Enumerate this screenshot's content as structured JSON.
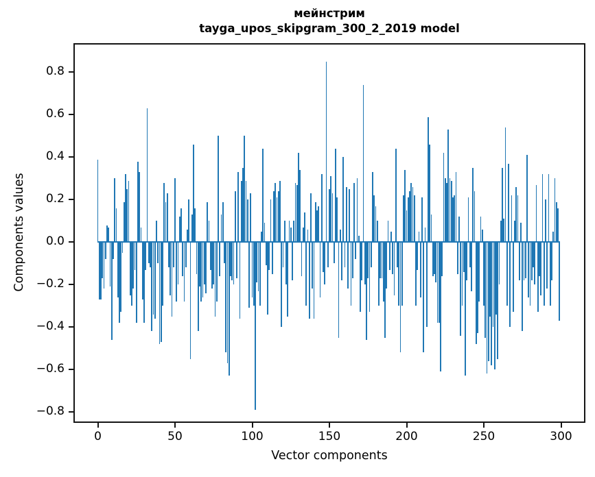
{
  "title": {
    "line1": "мейнстрим",
    "line2": "tayga_upos_skipgram_300_2_2019 model"
  },
  "chart_data": {
    "type": "bar",
    "title": "мейнстрим\ntayga_upos_skipgram_300_2_2019 model",
    "xlabel": "Vector components",
    "ylabel": "Components values",
    "x_start": 0,
    "x_step": 1,
    "x_ticks": [
      0,
      50,
      100,
      150,
      200,
      250,
      300
    ],
    "y_ticks": [
      0.8,
      0.6,
      0.4,
      0.2,
      0.0,
      -0.2,
      -0.4,
      -0.6,
      -0.8
    ],
    "xlim": [
      -15.8,
      315.8
    ],
    "ylim": [
      -0.851,
      0.937
    ],
    "grid": false,
    "legend": null,
    "bar_color": "#1f77b4",
    "spine_color": "#141414",
    "zero_line": true,
    "values": [
      0.39,
      -0.27,
      -0.27,
      -0.17,
      -0.22,
      -0.08,
      0.08,
      0.07,
      -0.21,
      -0.46,
      -0.08,
      0.3,
      0.16,
      -0.26,
      -0.38,
      -0.33,
      -0.05,
      0.19,
      0.32,
      0.25,
      0.29,
      -0.25,
      -0.3,
      -0.22,
      -0.13,
      -0.38,
      0.38,
      0.33,
      0.07,
      -0.27,
      -0.38,
      -0.13,
      0.63,
      -0.1,
      -0.12,
      -0.42,
      -0.34,
      -0.36,
      0.1,
      -0.1,
      -0.48,
      -0.47,
      -0.3,
      0.28,
      0.19,
      0.23,
      -0.12,
      -0.25,
      -0.35,
      -0.12,
      0.3,
      -0.28,
      -0.2,
      0.12,
      0.16,
      -0.16,
      -0.28,
      -0.12,
      0.06,
      0.2,
      -0.55,
      0.13,
      0.46,
      0.16,
      -0.15,
      -0.42,
      -0.21,
      -0.28,
      -0.26,
      -0.2,
      -0.24,
      0.19,
      0.1,
      -0.13,
      -0.22,
      -0.2,
      -0.35,
      -0.28,
      0.5,
      -0.16,
      0.13,
      0.19,
      -0.1,
      -0.52,
      -0.57,
      -0.63,
      -0.16,
      -0.18,
      -0.2,
      0.24,
      -0.17,
      0.33,
      -0.36,
      0.29,
      0.35,
      0.5,
      0.29,
      0.2,
      -0.31,
      0.23,
      -0.26,
      -0.3,
      -0.79,
      -0.19,
      -0.23,
      -0.3,
      0.05,
      0.44,
      0.09,
      -0.11,
      -0.34,
      -0.13,
      0.2,
      -0.15,
      0.24,
      0.28,
      0.21,
      0.24,
      0.29,
      -0.4,
      -0.12,
      0.1,
      -0.2,
      -0.35,
      0.1,
      0.07,
      -0.18,
      0.1,
      0.28,
      0.27,
      0.42,
      0.34,
      -0.16,
      0.07,
      0.14,
      -0.3,
      0.06,
      -0.36,
      0.23,
      -0.22,
      -0.36,
      0.19,
      0.15,
      0.17,
      -0.26,
      0.32,
      -0.14,
      -0.2,
      0.85,
      -0.12,
      0.25,
      0.31,
      0.23,
      -0.1,
      0.44,
      0.21,
      -0.45,
      0.06,
      -0.18,
      0.4,
      -0.12,
      0.26,
      -0.22,
      0.25,
      -0.3,
      -0.17,
      0.28,
      -0.08,
      0.3,
      0.03,
      -0.33,
      -0.18,
      0.74,
      -0.2,
      -0.46,
      -0.17,
      -0.33,
      -0.12,
      0.33,
      0.22,
      0.17,
      0.1,
      -0.3,
      -0.17,
      -0.17,
      -0.28,
      -0.45,
      -0.22,
      0.1,
      -0.13,
      0.05,
      -0.15,
      -0.25,
      0.44,
      -0.12,
      -0.3,
      -0.52,
      -0.3,
      0.22,
      0.34,
      0.15,
      0.21,
      0.24,
      0.28,
      0.26,
      0.22,
      -0.3,
      -0.13,
      0.05,
      -0.26,
      0.21,
      -0.52,
      0.07,
      -0.4,
      0.59,
      0.46,
      0.13,
      -0.16,
      -0.15,
      -0.19,
      -0.38,
      -0.38,
      -0.61,
      -0.16,
      0.42,
      0.3,
      0.28,
      0.53,
      0.3,
      0.29,
      0.21,
      0.22,
      0.33,
      -0.15,
      0.12,
      -0.44,
      -0.3,
      -0.14,
      -0.63,
      -0.18,
      0.21,
      -0.12,
      -0.23,
      0.35,
      0.24,
      -0.48,
      -0.43,
      -0.28,
      0.12,
      0.06,
      -0.3,
      -0.45,
      -0.62,
      -0.56,
      -0.35,
      -0.58,
      -0.4,
      -0.6,
      -0.34,
      -0.55,
      -0.2,
      0.1,
      0.35,
      0.11,
      0.54,
      -0.3,
      0.37,
      -0.4,
      0.22,
      -0.33,
      0.1,
      0.26,
      0.22,
      -0.18,
      0.09,
      -0.42,
      -0.18,
      -0.17,
      0.41,
      -0.26,
      -0.3,
      -0.18,
      -0.12,
      -0.2,
      0.27,
      -0.33,
      -0.16,
      -0.25,
      0.32,
      -0.3,
      0.2,
      -0.22,
      0.32,
      -0.3,
      -0.18,
      0.05,
      0.3,
      0.19,
      0.16,
      -0.37
    ]
  }
}
